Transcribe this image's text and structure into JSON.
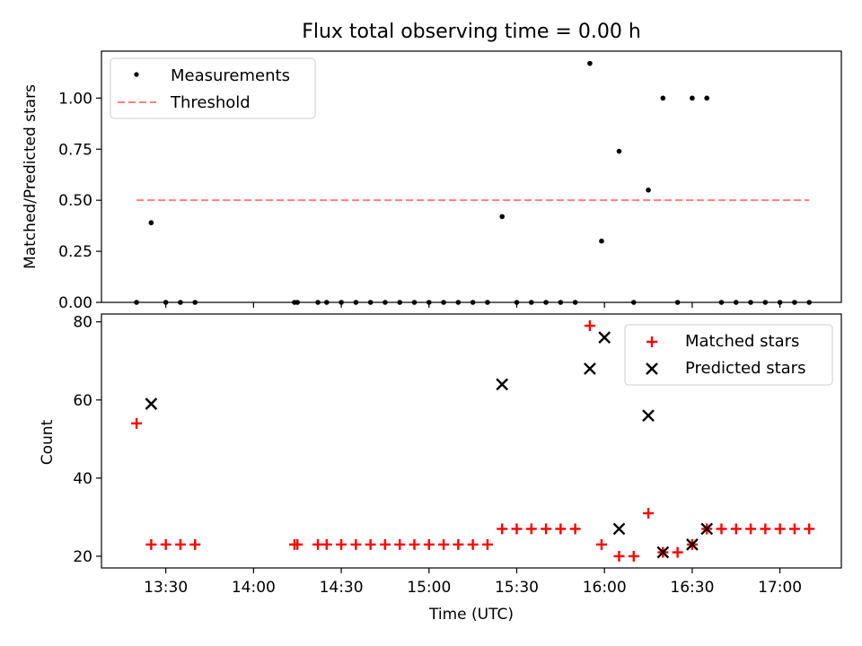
{
  "chart_data": [
    {
      "type": "scatter",
      "title": "Flux total observing time = 0.00 h",
      "xlabel": "",
      "ylabel": "Matched/Predicted stars",
      "ylim": [
        0,
        1.23
      ],
      "yticks": [
        0.0,
        0.25,
        0.5,
        0.75,
        1.0
      ],
      "ytick_labels": [
        "0.00",
        "0.25",
        "0.50",
        "0.75",
        "1.00"
      ],
      "legend_position": "top-left",
      "series": [
        {
          "name": "Measurements",
          "marker": "dot",
          "color": "#000000",
          "x": [
            "13:20",
            "13:25",
            "13:30",
            "13:35",
            "13:40",
            "14:14",
            "14:15",
            "14:22",
            "14:25",
            "14:30",
            "14:35",
            "14:40",
            "14:45",
            "14:50",
            "14:55",
            "15:00",
            "15:05",
            "15:10",
            "15:15",
            "15:20",
            "15:25",
            "15:30",
            "15:35",
            "15:40",
            "15:45",
            "15:50",
            "15:55",
            "15:59",
            "16:05",
            "16:10",
            "16:15",
            "16:20",
            "16:25",
            "16:30",
            "16:35",
            "16:40",
            "16:45",
            "16:50",
            "16:55",
            "17:00",
            "17:05",
            "17:10"
          ],
          "y": [
            0,
            0.39,
            0,
            0,
            0,
            0,
            0,
            0,
            0,
            0,
            0,
            0,
            0,
            0,
            0,
            0,
            0,
            0,
            0,
            0,
            0.42,
            0,
            0,
            0,
            0,
            0,
            1.17,
            0.3,
            0.74,
            0,
            0.55,
            1.0,
            0,
            1.0,
            1.0,
            0,
            0,
            0,
            0,
            0,
            0,
            0
          ]
        },
        {
          "name": "Threshold",
          "marker": "dashed-line",
          "color": "#ff7f7f",
          "x": [
            "13:20",
            "17:10"
          ],
          "y": [
            0.5,
            0.5
          ]
        }
      ]
    },
    {
      "type": "scatter",
      "title": "",
      "xlabel": "Time (UTC)",
      "ylabel": "Count",
      "ylim": [
        17,
        82
      ],
      "yticks": [
        20,
        40,
        60,
        80
      ],
      "ytick_labels": [
        "20",
        "40",
        "60",
        "80"
      ],
      "xlim": [
        "13:08",
        "17:21"
      ],
      "xticks": [
        "13:30",
        "14:00",
        "14:30",
        "15:00",
        "15:30",
        "16:00",
        "16:30",
        "17:00"
      ],
      "legend_position": "top-right",
      "series": [
        {
          "name": "Matched stars",
          "marker": "plus",
          "color": "#ff0000",
          "x": [
            "13:20",
            "13:25",
            "13:30",
            "13:35",
            "13:40",
            "14:14",
            "14:15",
            "14:22",
            "14:25",
            "14:30",
            "14:35",
            "14:40",
            "14:45",
            "14:50",
            "14:55",
            "15:00",
            "15:05",
            "15:10",
            "15:15",
            "15:20",
            "15:25",
            "15:30",
            "15:35",
            "15:40",
            "15:45",
            "15:50",
            "15:55",
            "15:59",
            "16:05",
            "16:10",
            "16:15",
            "16:20",
            "16:25",
            "16:30",
            "16:35",
            "16:40",
            "16:45",
            "16:50",
            "16:55",
            "17:00",
            "17:05",
            "17:10"
          ],
          "y": [
            54,
            23,
            23,
            23,
            23,
            23,
            23,
            23,
            23,
            23,
            23,
            23,
            23,
            23,
            23,
            23,
            23,
            23,
            23,
            23,
            27,
            27,
            27,
            27,
            27,
            27,
            79,
            23,
            20,
            20,
            31,
            21,
            21,
            23,
            27,
            27,
            27,
            27,
            27,
            27,
            27,
            27
          ]
        },
        {
          "name": "Predicted stars",
          "marker": "x",
          "color": "#000000",
          "x": [
            "13:25",
            "15:25",
            "15:55",
            "16:00",
            "16:05",
            "16:15",
            "16:20",
            "16:30",
            "16:35"
          ],
          "y": [
            59,
            64,
            68,
            76,
            27,
            56,
            21,
            23,
            27
          ]
        }
      ]
    }
  ]
}
